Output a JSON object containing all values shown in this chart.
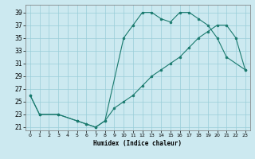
{
  "title": "",
  "xlabel": "Humidex (Indice chaleur)",
  "bg_color": "#cce9f0",
  "grid_color": "#99cdd9",
  "line_color": "#1a7a6e",
  "xlim": [
    -0.5,
    23.5
  ],
  "ylim": [
    20.5,
    40.2
  ],
  "xticks": [
    0,
    1,
    2,
    3,
    4,
    5,
    6,
    7,
    8,
    9,
    10,
    11,
    12,
    13,
    14,
    15,
    16,
    17,
    18,
    19,
    20,
    21,
    22,
    23
  ],
  "yticks": [
    21,
    23,
    25,
    27,
    29,
    31,
    33,
    35,
    37,
    39
  ],
  "curve1_x": [
    0,
    1,
    3,
    5,
    6,
    7,
    8,
    10,
    11,
    12,
    13,
    14,
    15,
    16,
    17,
    18,
    19,
    20,
    21,
    23
  ],
  "curve1_y": [
    26,
    23,
    23,
    22,
    21.5,
    21,
    22,
    35,
    37,
    39,
    39,
    38,
    37.5,
    39,
    39,
    38,
    37,
    35,
    32,
    30
  ],
  "curve2_x": [
    0,
    1,
    3,
    5,
    6,
    7,
    8,
    9,
    10,
    11,
    12,
    13,
    14,
    15,
    16,
    17,
    18,
    19,
    20,
    21,
    22,
    23
  ],
  "curve2_y": [
    26,
    23,
    23,
    22,
    21.5,
    21,
    22,
    24,
    25,
    26,
    27.5,
    29,
    30,
    31,
    32,
    33.5,
    35,
    36,
    37,
    37,
    35,
    30
  ]
}
